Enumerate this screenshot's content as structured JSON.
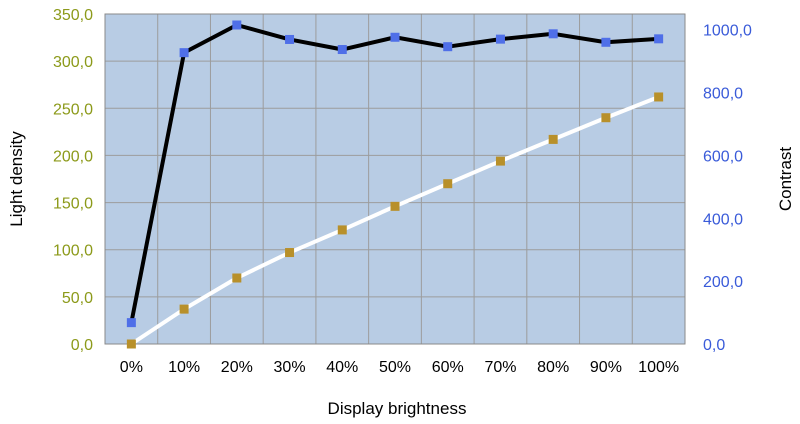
{
  "chart_data": {
    "type": "line",
    "xlabel": "Display brightness",
    "ylabel_left": "Light density",
    "ylabel_right": "Contrast",
    "categories": [
      "0%",
      "10%",
      "20%",
      "30%",
      "40%",
      "50%",
      "60%",
      "70%",
      "80%",
      "90%",
      "100%"
    ],
    "y_left_range": [
      0,
      350
    ],
    "y_left_ticks": [
      "0,0",
      "50,0",
      "100,0",
      "150,0",
      "200,0",
      "250,0",
      "300,0",
      "350,0"
    ],
    "y_right_range": [
      0,
      1050
    ],
    "y_right_ticks": [
      "0,0",
      "200,0",
      "400,0",
      "600,0",
      "800,0",
      "1000,0"
    ],
    "grid": true,
    "series": [
      {
        "axis": "left",
        "line_color": "#ffffff",
        "marker_color": "#b8902a",
        "values": [
          0,
          37,
          70,
          97,
          121,
          146,
          170,
          194,
          217,
          240,
          262
        ]
      },
      {
        "axis": "right",
        "line_color": "#000000",
        "marker_color": "#4f6fe8",
        "values": [
          68,
          927,
          1015,
          969,
          937,
          976,
          946,
          970,
          987,
          960,
          971
        ]
      }
    ],
    "colors": {
      "plot_background": "#b8cce4",
      "grid": "#9c9c9c",
      "left_tick_color": "#8c9a1a",
      "right_tick_color": "#3a5bd9"
    }
  }
}
